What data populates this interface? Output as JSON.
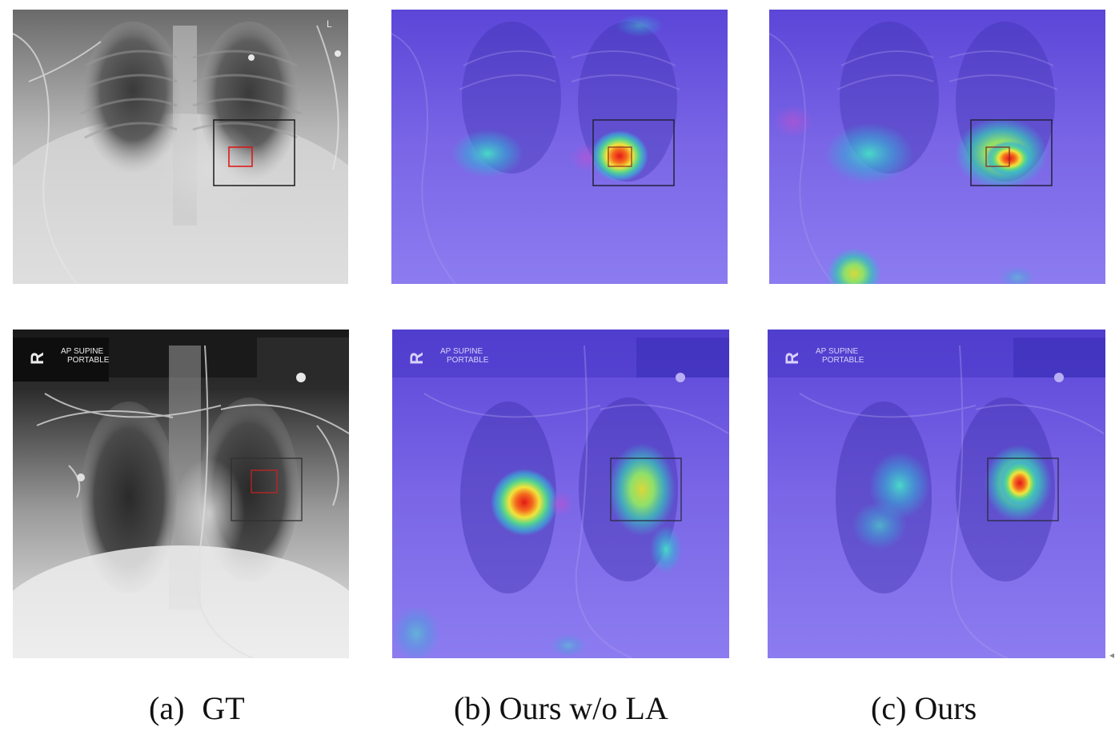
{
  "captions": {
    "a_label": "(a)",
    "a_text": "GT",
    "b": "(b) Ours w/o LA",
    "c": "(c) Ours"
  },
  "xray_labels": {
    "side_marker_row1": "L",
    "side_marker_row2": "R",
    "view_line1": "AP   SUPINE",
    "view_line2": "PORTABLE"
  },
  "colors": {
    "gt_box": "#1a1a1a",
    "gt_inner_box": "#e01010",
    "heatmap_base": "#7a62e6",
    "heatmap_hot": "#e41a1a"
  }
}
